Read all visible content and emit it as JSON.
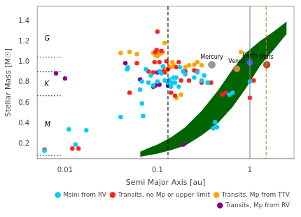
{
  "chart_data": {
    "type": "scatter",
    "xlabel": "Semi Major Axis [au]",
    "ylabel": "Stellar Mass [M☉]",
    "log": "x",
    "xlim": [
      0.005,
      3.0
    ],
    "xticks": [
      0.01,
      0.1,
      1
    ],
    "ylim": [
      0.05,
      1.55
    ],
    "yticks": [
      0.2,
      0.4,
      0.6,
      0.8,
      {
        "value": 1.0,
        "label": "1.0"
      },
      1.2,
      1.4
    ],
    "grid": false,
    "legend": "lower right",
    "series": [
      {
        "name": "Msini from RV",
        "color": "#00CCFF",
        "marker": "circle",
        "x": [
          0.006,
          0.011,
          0.013,
          0.017,
          0.04,
          0.047,
          0.048,
          0.065,
          0.068,
          0.068,
          0.07,
          0.075,
          0.08,
          0.085,
          0.09,
          0.1,
          0.105,
          0.11,
          0.115,
          0.12,
          0.13,
          0.135,
          0.14,
          0.145,
          0.15,
          0.155,
          0.16,
          0.17,
          0.175,
          0.19,
          0.2,
          0.25,
          0.27,
          0.3,
          0.32,
          0.35,
          0.4,
          0.42,
          0.44,
          0.6,
          0.65,
          1.0
        ],
        "values": [
          0.13,
          0.34,
          0.19,
          0.33,
          0.46,
          0.93,
          0.95,
          0.73,
          0.81,
          0.595,
          0.47,
          0.93,
          0.8,
          0.87,
          0.77,
          0.81,
          0.91,
          0.89,
          0.96,
          0.82,
          0.8,
          0.83,
          0.76,
          0.8,
          0.85,
          0.8,
          0.85,
          0.76,
          0.95,
          0.91,
          0.88,
          0.85,
          0.9,
          0.82,
          0.87,
          0.8,
          0.35,
          0.41,
          0.36,
          0.68,
          0.7,
          0.81
        ]
      },
      {
        "name": "Transits, no Mp or upper limit",
        "color": "#FF2020",
        "marker": "circle",
        "x": [
          0.006,
          0.012,
          0.014,
          0.05,
          0.06,
          0.08,
          0.09,
          0.093,
          0.095,
          0.098,
          0.1,
          0.105,
          0.11,
          0.115,
          0.12,
          0.125,
          0.13,
          0.135,
          0.14,
          0.15,
          0.155,
          0.16,
          0.17,
          0.18,
          0.2,
          0.22,
          0.25,
          0.27,
          0.3,
          0.35,
          0.38,
          0.5,
          0.55,
          1.0,
          1.1
        ],
        "values": [
          0.14,
          0.15,
          0.15,
          0.7,
          0.99,
          0.91,
          0.9,
          1.0,
          1.1,
          1.12,
          1.3,
          1.0,
          1.11,
          0.91,
          0.9,
          1.01,
          0.93,
          0.81,
          0.7,
          0.8,
          0.67,
          0.95,
          1.0,
          0.82,
          0.91,
          0.82,
          0.92,
          0.91,
          0.8,
          0.8,
          0.8,
          0.68,
          0.7,
          0.65,
          0.82
        ]
      },
      {
        "name": "Transits, Mp from TTV",
        "color": "#FFA500",
        "marker": "circle",
        "x": [
          0.04,
          0.05,
          0.06,
          0.09,
          0.095,
          0.1,
          0.105,
          0.11,
          0.115,
          0.12,
          0.125,
          0.13,
          0.135,
          0.14,
          0.145,
          0.15,
          0.16,
          0.18,
          0.2,
          0.22,
          0.25,
          0.27,
          0.3,
          0.8
        ],
        "values": [
          1.09,
          1.1,
          1.08,
          1.09,
          1.07,
          1.06,
          1.08,
          1.09,
          1.1,
          1.19,
          0.93,
          0.94,
          0.955,
          0.95,
          1.0,
          0.97,
          0.65,
          0.68,
          0.95,
          0.97,
          0.975,
          1.0,
          0.97,
          1.1
        ]
      },
      {
        "name": "Transits, Mp from RV",
        "color": "#880088",
        "marker": "circle",
        "x": [
          0.008,
          0.01,
          0.045,
          0.065,
          0.09,
          0.095,
          0.1,
          0.105,
          0.12,
          0.13,
          0.19
        ],
        "values": [
          0.89,
          0.84,
          0.99,
          0.83,
          0.76,
          0.77,
          0.9,
          0.78,
          0.92,
          0.77,
          0.19
        ]
      }
    ],
    "band": {
      "color": "#006400",
      "x": [
        0.065,
        0.08,
        0.1,
        0.14,
        0.2,
        0.3,
        0.45,
        0.65,
        0.9,
        1.3,
        1.8,
        2.5
      ],
      "lower": [
        0.07,
        0.085,
        0.1,
        0.135,
        0.18,
        0.28,
        0.4,
        0.56,
        0.74,
        0.97,
        1.12,
        1.28
      ],
      "upper": [
        0.12,
        0.155,
        0.19,
        0.26,
        0.36,
        0.52,
        0.72,
        0.93,
        1.09,
        1.21,
        1.3,
        1.4
      ]
    },
    "vlines": [
      {
        "x": 0.13,
        "color": "#000000",
        "line_style": "dashed"
      },
      {
        "x": 1.5,
        "color": "#CC8800",
        "line_style": "dashed"
      },
      {
        "x": 1.0,
        "color": "#888888",
        "line_style": "solid"
      }
    ],
    "hlines": [
      {
        "y": 1.05,
        "x_end": 0.009,
        "color": "#000000",
        "line_style": "dotted"
      },
      {
        "y": 0.905,
        "x_end": 0.009,
        "color": "#000000",
        "line_style": "dotted"
      },
      {
        "y": 0.67,
        "x_end": 0.009,
        "color": "#000000",
        "line_style": "dotted"
      },
      {
        "y": 0.082,
        "x_end": 0.009,
        "color": "#000000",
        "line_style": "dotted"
      }
    ],
    "annotations": [
      {
        "text": "G",
        "x": 0.006,
        "y": 1.23
      },
      {
        "text": "K",
        "x": 0.006,
        "y": 0.78
      },
      {
        "text": "M",
        "x": 0.006,
        "y": 0.38
      }
    ],
    "planets": [
      {
        "name": "Mercury",
        "x": 0.387,
        "y": 0.975,
        "color": "#999999"
      },
      {
        "name": "Venus",
        "x": 0.723,
        "y": 0.935,
        "color": "#CC8844"
      },
      {
        "name": "Earth",
        "x": 1.0,
        "y": 0.995,
        "color": "#3366CC"
      },
      {
        "name": "Mars",
        "x": 1.524,
        "y": 0.975,
        "color": "#CC4422"
      }
    ]
  }
}
